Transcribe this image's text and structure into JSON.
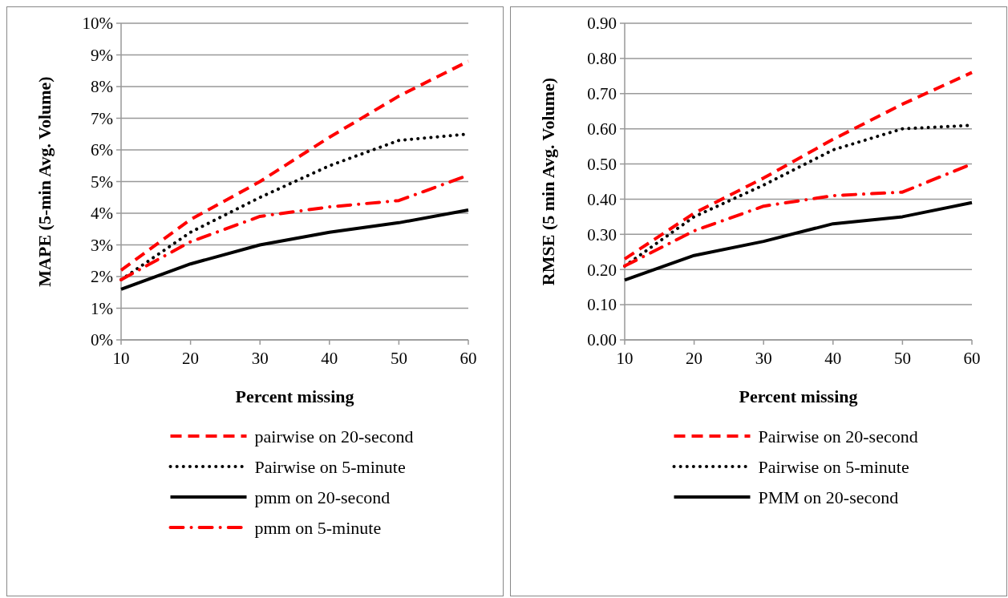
{
  "chart_data": [
    {
      "type": "line",
      "xlabel": "Percent missing",
      "ylabel": "MAPE (5-min Avg. Volume)",
      "x": [
        10,
        20,
        30,
        40,
        50,
        60
      ],
      "xlim": [
        10,
        60
      ],
      "xticks": [
        10,
        20,
        30,
        40,
        50,
        60
      ],
      "ylim": [
        0,
        10
      ],
      "yticks": [
        {
          "value": 0,
          "label": "0%"
        },
        {
          "value": 1,
          "label": "1%"
        },
        {
          "value": 2,
          "label": "2%"
        },
        {
          "value": 3,
          "label": "3%"
        },
        {
          "value": 4,
          "label": "4%"
        },
        {
          "value": 5,
          "label": "5%"
        },
        {
          "value": 6,
          "label": "6%"
        },
        {
          "value": 7,
          "label": "7%"
        },
        {
          "value": 8,
          "label": "8%"
        },
        {
          "value": 9,
          "label": "9%"
        },
        {
          "value": 10,
          "label": "10%"
        }
      ],
      "grid": "y",
      "legend": "bottom",
      "series": [
        {
          "name": "pairwise on 20-second",
          "color": "#ff0000",
          "line_style": "dashed",
          "values": [
            2.2,
            3.8,
            5.0,
            6.4,
            7.7,
            8.8
          ]
        },
        {
          "name": "Pairwise on 5-minute",
          "color": "#000000",
          "line_style": "dotted",
          "values": [
            1.9,
            3.4,
            4.5,
            5.5,
            6.3,
            6.5
          ]
        },
        {
          "name": "pmm on 20-second",
          "color": "#000000",
          "line_style": "solid",
          "values": [
            1.6,
            2.4,
            3.0,
            3.4,
            3.7,
            4.1
          ]
        },
        {
          "name": "pmm on 5-minute",
          "color": "#ff0000",
          "line_style": "dashdot",
          "values": [
            1.9,
            3.1,
            3.9,
            4.2,
            4.4,
            5.2
          ]
        }
      ]
    },
    {
      "type": "line",
      "xlabel": "Percent missing",
      "ylabel": "RMSE (5 min Avg. Volume)",
      "x": [
        10,
        20,
        30,
        40,
        50,
        60
      ],
      "xlim": [
        10,
        60
      ],
      "xticks": [
        10,
        20,
        30,
        40,
        50,
        60
      ],
      "ylim": [
        0,
        0.9
      ],
      "yticks": [
        {
          "value": 0,
          "label": "0.00"
        },
        {
          "value": 0.1,
          "label": "0.10"
        },
        {
          "value": 0.2,
          "label": "0.20"
        },
        {
          "value": 0.3,
          "label": "0.30"
        },
        {
          "value": 0.4,
          "label": "0.40"
        },
        {
          "value": 0.5,
          "label": "0.50"
        },
        {
          "value": 0.6,
          "label": "0.60"
        },
        {
          "value": 0.7,
          "label": "0.70"
        },
        {
          "value": 0.8,
          "label": "0.80"
        },
        {
          "value": 0.9,
          "label": "0.90"
        }
      ],
      "grid": "y",
      "legend": "bottom",
      "series": [
        {
          "name": "Pairwise on 20-second",
          "color": "#ff0000",
          "line_style": "dashed",
          "values": [
            0.23,
            0.36,
            0.46,
            0.57,
            0.67,
            0.76
          ]
        },
        {
          "name": "Pairwise on 5-minute",
          "color": "#000000",
          "line_style": "dotted",
          "values": [
            0.21,
            0.35,
            0.44,
            0.54,
            0.6,
            0.61
          ]
        },
        {
          "name": "PMM on 20-second",
          "color": "#000000",
          "line_style": "solid",
          "values": [
            0.17,
            0.24,
            0.28,
            0.33,
            0.35,
            0.39
          ]
        },
        {
          "color": "#ff0000",
          "line_style": "dashdot",
          "values": [
            0.21,
            0.31,
            0.38,
            0.41,
            0.42,
            0.5
          ]
        }
      ]
    }
  ]
}
